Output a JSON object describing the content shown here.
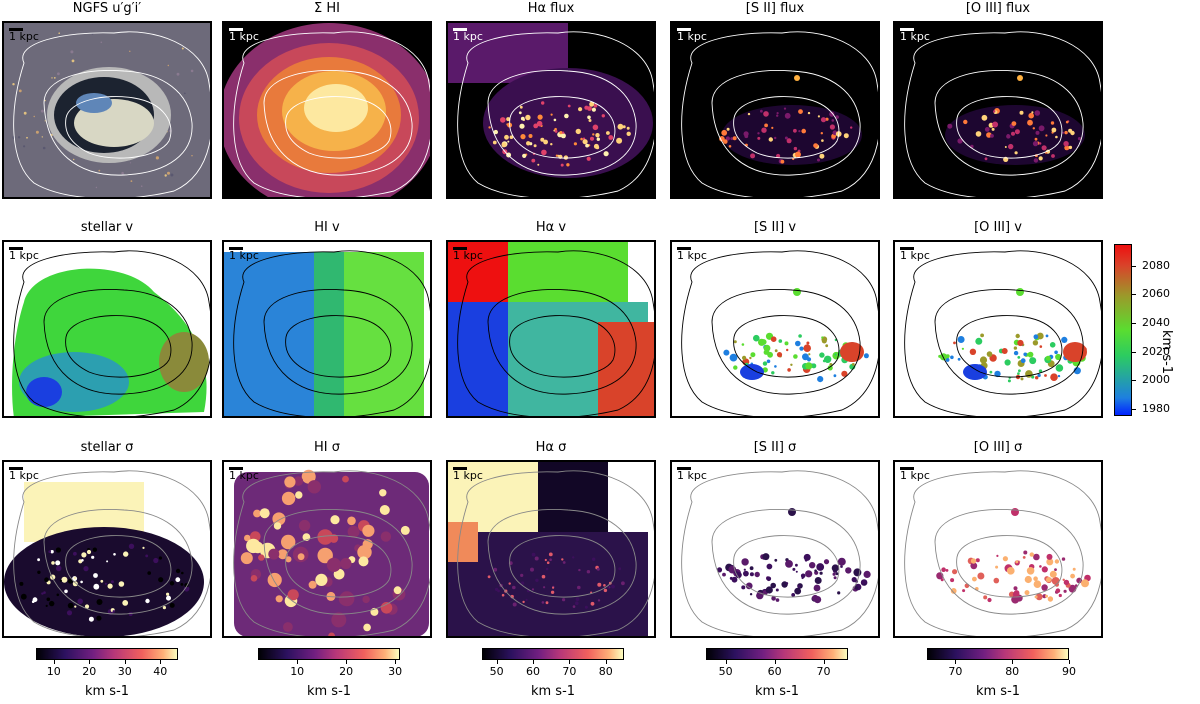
{
  "figure": {
    "rows": [
      {
        "row_name": "flux",
        "panels": [
          {
            "title": "NGFS u′g′i′",
            "style": "rgb",
            "contours": "white"
          },
          {
            "title": "Σ HI",
            "style": "hi-flux",
            "contours": "white"
          },
          {
            "title": "Hα flux",
            "style": "ha-flux",
            "contours": "white"
          },
          {
            "title": "[S II] flux",
            "style": "sii-flux",
            "contours": "white"
          },
          {
            "title": "[O III] flux",
            "style": "oiii-flux",
            "contours": "white"
          }
        ]
      },
      {
        "row_name": "velocity",
        "panels": [
          {
            "title": "stellar v",
            "style": "vel-stellar",
            "contours": "black"
          },
          {
            "title": "HI v",
            "style": "vel-hi",
            "contours": "black"
          },
          {
            "title": "Hα v",
            "style": "vel-ha",
            "contours": "black"
          },
          {
            "title": "[S II] v",
            "style": "vel-sparse",
            "contours": "black"
          },
          {
            "title": "[O III] v",
            "style": "vel-sparse2",
            "contours": "black"
          }
        ]
      },
      {
        "row_name": "dispersion",
        "panels": [
          {
            "title": "stellar σ",
            "style": "sig-stellar",
            "contours": "gray"
          },
          {
            "title": "HI σ",
            "style": "sig-hi",
            "contours": "gray"
          },
          {
            "title": "Hα σ",
            "style": "sig-ha",
            "contours": "gray"
          },
          {
            "title": "[S II] σ",
            "style": "sig-sii",
            "contours": "gray"
          },
          {
            "title": "[O III] σ",
            "style": "sig-oiii",
            "contours": "gray"
          }
        ]
      }
    ],
    "scalebar_label": "1 kpc",
    "velocity_colorbar": {
      "label": "km s-1",
      "ticks": [
        1980,
        2000,
        2020,
        2040,
        2060,
        2080
      ],
      "range": [
        1975,
        2095
      ]
    },
    "dispersion_colorbars": [
      {
        "label": "km s-1",
        "ticks": [
          10,
          20,
          30,
          40
        ],
        "range": [
          5,
          45
        ]
      },
      {
        "label": "km s-1",
        "ticks": [
          10,
          20,
          30
        ],
        "range": [
          2,
          31
        ]
      },
      {
        "label": "km s-1",
        "ticks": [
          50,
          60,
          70,
          80
        ],
        "range": [
          46,
          85
        ]
      },
      {
        "label": "km s-1",
        "ticks": [
          50,
          60,
          70
        ],
        "range": [
          46,
          75
        ]
      },
      {
        "label": "km s-1",
        "ticks": [
          70,
          80,
          90
        ],
        "range": [
          65,
          90
        ]
      }
    ]
  }
}
